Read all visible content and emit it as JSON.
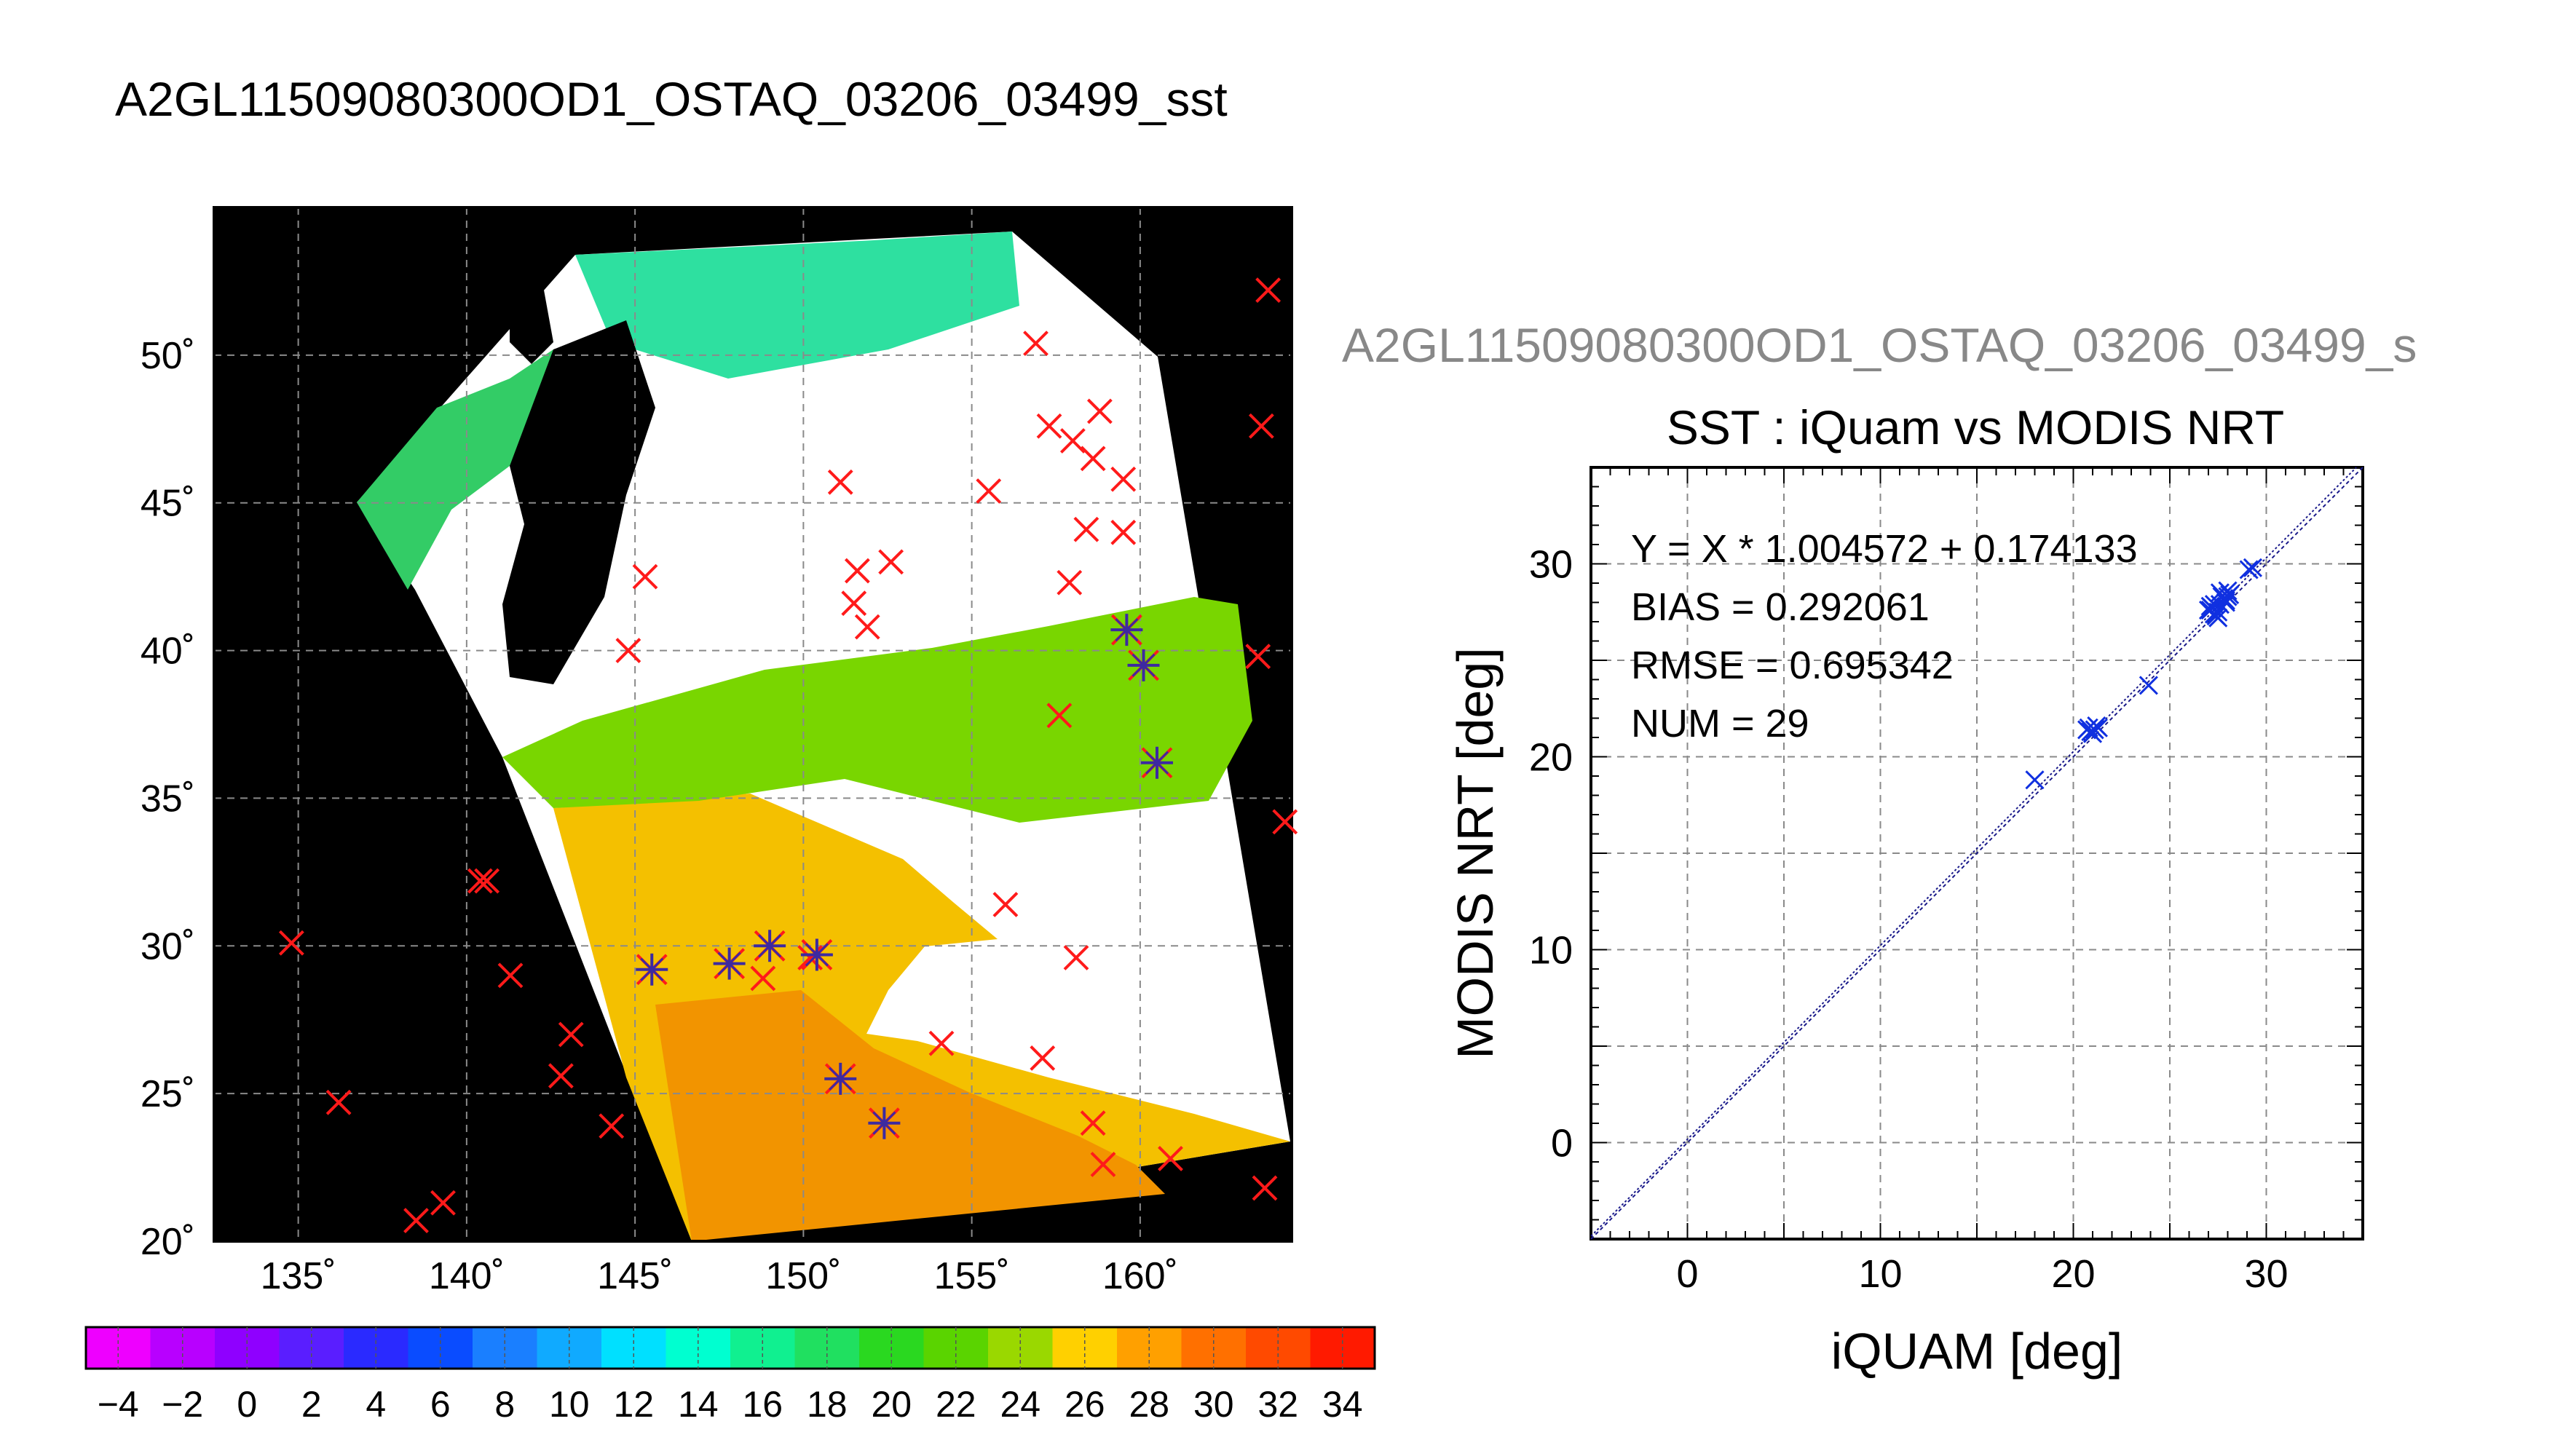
{
  "page_title": "A2GL11509080300OD1_OSTAQ_03206_03499_sst",
  "scatter_file_label": "A2GL11509080300OD1_OSTAQ_03206_03499_s",
  "chart_data": [
    {
      "type": "map",
      "lon_ticks": [
        "135˚",
        "140˚",
        "145˚",
        "150˚",
        "155˚",
        "160˚"
      ],
      "lat_ticks": [
        "50˚",
        "45˚",
        "40˚",
        "35˚",
        "30˚",
        "25˚",
        "20˚"
      ],
      "lon_range": [
        132.5,
        164.5
      ],
      "lat_range": [
        20,
        55
      ],
      "red_x_points": [
        [
          163.8,
          52.2
        ],
        [
          163.6,
          47.6
        ],
        [
          163.5,
          39.8
        ],
        [
          164.3,
          34.2
        ],
        [
          163.7,
          21.8
        ],
        [
          156.9,
          50.4
        ],
        [
          157.3,
          47.6
        ],
        [
          158.0,
          47.1
        ],
        [
          158.8,
          48.1
        ],
        [
          158.6,
          46.5
        ],
        [
          159.5,
          45.8
        ],
        [
          155.5,
          45.4
        ],
        [
          151.1,
          45.7
        ],
        [
          158.4,
          44.1
        ],
        [
          159.5,
          44.0
        ],
        [
          151.6,
          42.7
        ],
        [
          152.6,
          43.0
        ],
        [
          157.9,
          42.3
        ],
        [
          151.5,
          41.6
        ],
        [
          151.9,
          40.8
        ],
        [
          145.3,
          42.5
        ],
        [
          144.8,
          40.0
        ],
        [
          157.6,
          37.8
        ],
        [
          156.0,
          31.4
        ],
        [
          158.1,
          29.6
        ],
        [
          157.1,
          26.2
        ],
        [
          154.1,
          26.7
        ],
        [
          158.6,
          24.0
        ],
        [
          158.9,
          22.6
        ],
        [
          160.9,
          22.8
        ],
        [
          134.8,
          30.1
        ],
        [
          136.2,
          24.7
        ],
        [
          140.4,
          32.2
        ],
        [
          140.6,
          32.2
        ],
        [
          141.3,
          29.0
        ],
        [
          143.1,
          27.0
        ],
        [
          142.8,
          25.6
        ],
        [
          144.3,
          23.9
        ],
        [
          138.5,
          20.7
        ],
        [
          139.3,
          21.3
        ],
        [
          148.8,
          28.9
        ],
        [
          150.2,
          29.6
        ]
      ],
      "collocated_points": [
        [
          159.6,
          40.7
        ],
        [
          160.1,
          39.5
        ],
        [
          160.5,
          36.2
        ],
        [
          145.5,
          29.2
        ],
        [
          147.8,
          29.4
        ],
        [
          149.0,
          30.0
        ],
        [
          150.4,
          29.7
        ],
        [
          151.1,
          25.5
        ],
        [
          152.4,
          24.0
        ]
      ],
      "colorbar": {
        "ticks": [
          "-4",
          "-2",
          "0",
          "2",
          "4",
          "6",
          "8",
          "10",
          "12",
          "14",
          "16",
          "18",
          "20",
          "22",
          "24",
          "26",
          "28",
          "30",
          "32",
          "34"
        ],
        "range": [
          -5,
          35
        ]
      }
    },
    {
      "type": "scatter",
      "title": "SST : iQuam vs MODIS NRT",
      "xlabel": "iQUAM [deg]",
      "ylabel": "MODIS NRT [deg]",
      "xlim": [
        -5,
        35
      ],
      "ylim": [
        -5,
        35
      ],
      "x_ticks": [
        "0",
        "10",
        "20",
        "30"
      ],
      "y_ticks": [
        "0",
        "10",
        "20",
        "30"
      ],
      "grid": true,
      "stats": {
        "fit": "Y = X * 1.004572 + 0.174133",
        "bias": "BIAS = 0.292061",
        "rmse": "RMSE = 0.695342",
        "num": "NUM = 29"
      },
      "fit_line": {
        "slope": 1.004572,
        "intercept": 0.174133
      },
      "x": [
        18.0,
        20.8,
        21.1,
        20.9,
        21.2,
        23.9,
        27.0,
        27.1,
        27.3,
        27.5,
        27.8,
        27.9,
        28.0,
        27.6,
        29.3,
        27.2,
        27.7,
        28.1,
        20.7,
        21.0,
        27.4,
        27.9,
        27.3,
        27.6,
        28.0,
        21.3,
        27.1,
        27.5,
        29.1
      ],
      "y": [
        18.8,
        21.5,
        21.4,
        21.3,
        21.6,
        23.7,
        27.6,
        27.8,
        27.4,
        27.5,
        28.2,
        28.0,
        28.6,
        27.9,
        29.8,
        27.7,
        28.3,
        28.4,
        21.4,
        21.2,
        27.3,
        28.1,
        27.9,
        28.5,
        28.3,
        21.5,
        27.6,
        27.2,
        29.7
      ]
    }
  ]
}
